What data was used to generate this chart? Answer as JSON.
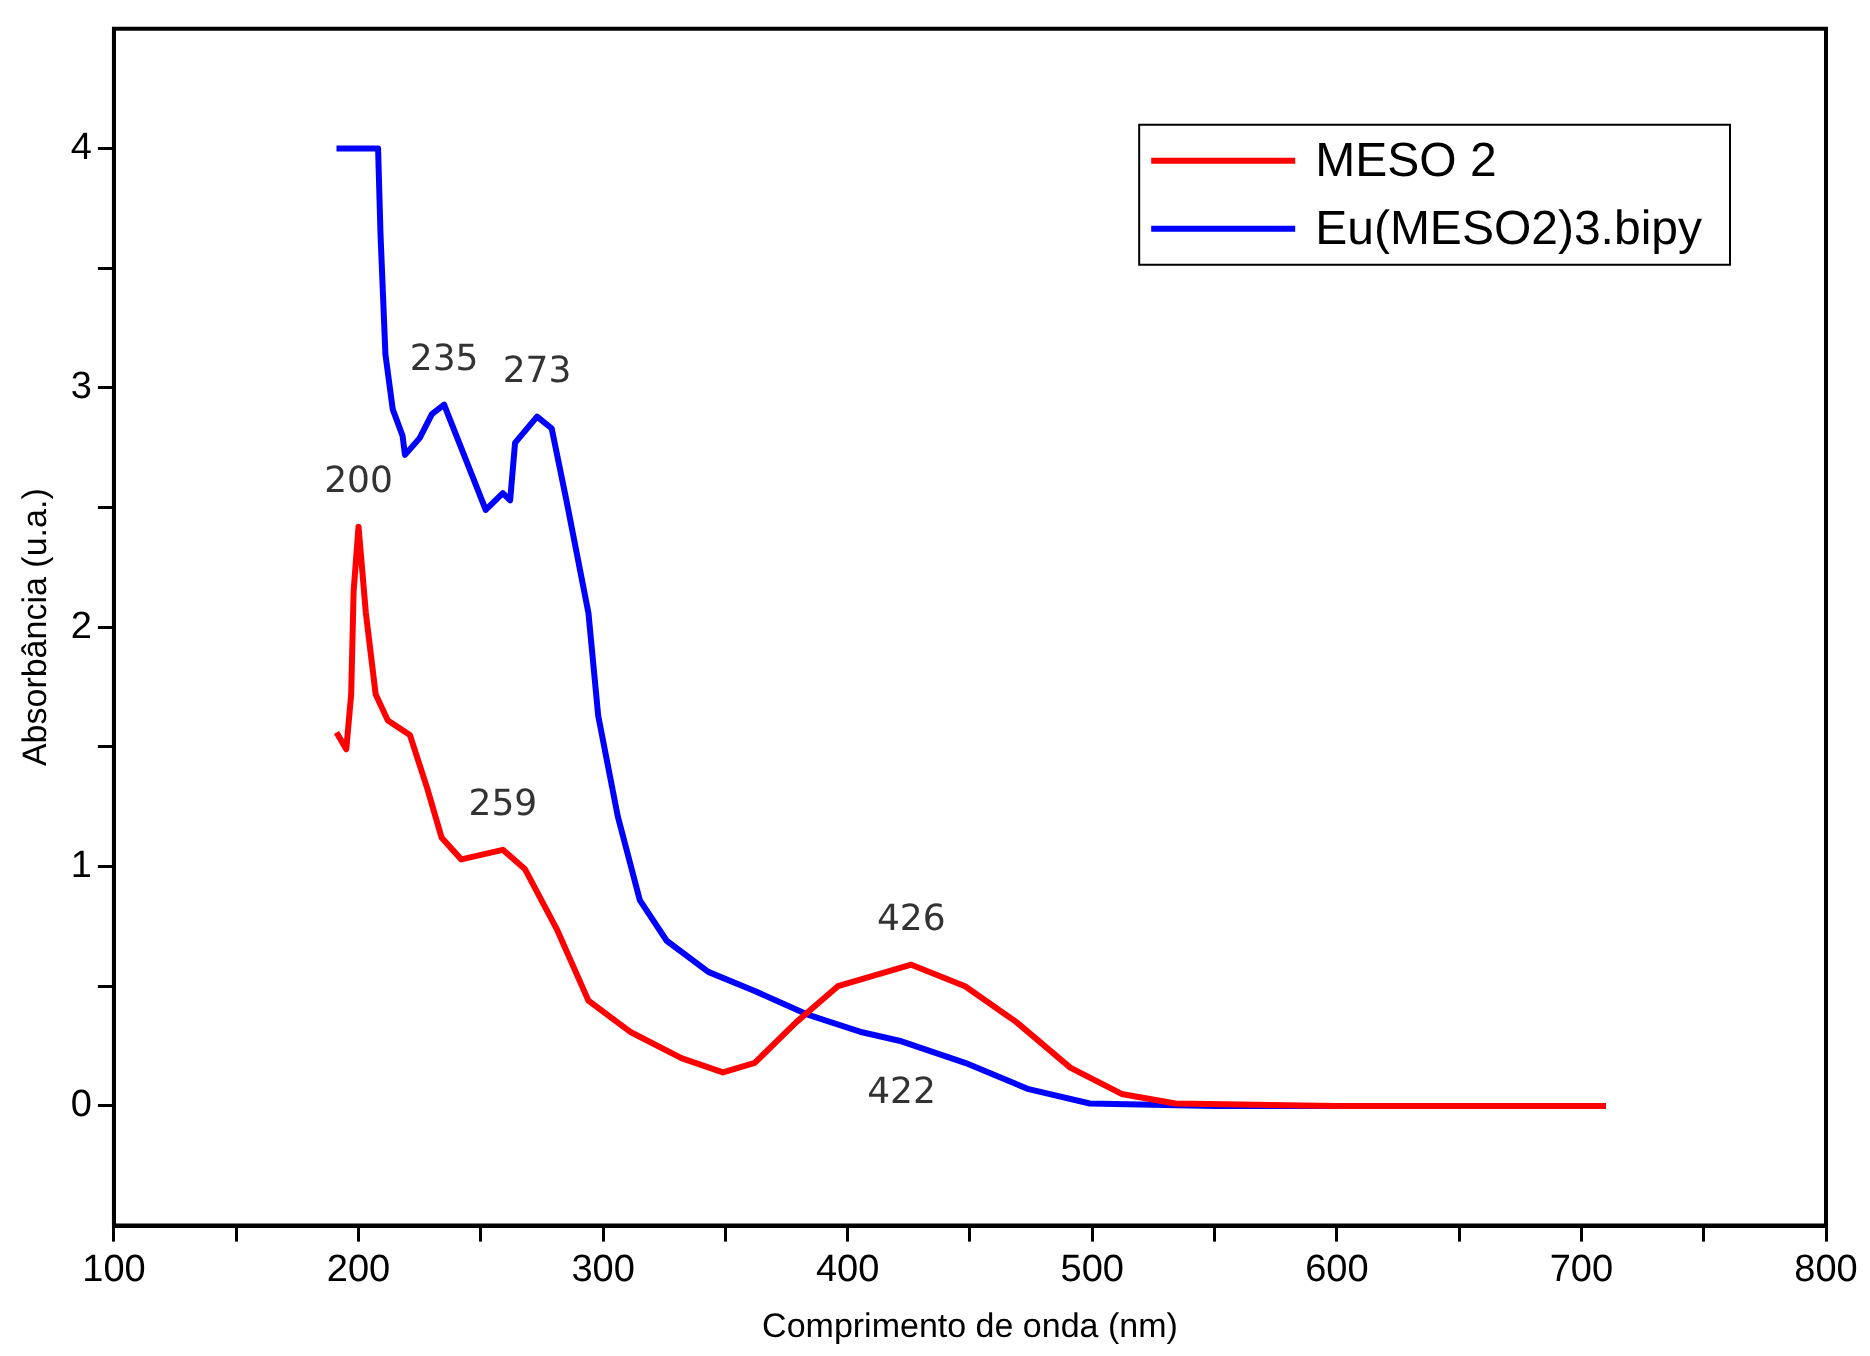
{
  "chart_data": {
    "type": "line",
    "xlabel": "Comprimento de onda (nm)",
    "ylabel": "Absorbância (u.a.)",
    "xlim": [
      100,
      800
    ],
    "ylim": [
      -0.5,
      4.5
    ],
    "xticks": [
      100,
      {
        "value": 150,
        "label": null
      },
      200,
      {
        "value": 250,
        "label": null
      },
      300,
      {
        "value": 350,
        "label": null
      },
      400,
      {
        "value": 450,
        "label": null
      },
      500,
      {
        "value": 550,
        "label": null
      },
      600,
      {
        "value": 650,
        "label": null
      },
      700,
      {
        "value": 750,
        "label": null
      },
      800
    ],
    "yticks": [
      0,
      {
        "value": 0.5,
        "label": null
      },
      1,
      {
        "value": 1.5,
        "label": null
      },
      2,
      {
        "value": 2.5,
        "label": null
      },
      3,
      {
        "value": 3.5,
        "label": null
      },
      4
    ],
    "grid": false,
    "legend": "top right",
    "marker": "none",
    "line_style": "solid",
    "series": [
      {
        "name": "MESO 2",
        "color": "#ff0000",
        "x": [
          191,
          195,
          197,
          198,
          200,
          203,
          207,
          212,
          221,
          228,
          234,
          242,
          259,
          268,
          281,
          294,
          311,
          332,
          349,
          362,
          379,
          396,
          426,
          448,
          469,
          491,
          512,
          534,
          600,
          650,
          710
        ],
        "values": [
          1.56,
          1.49,
          1.72,
          2.15,
          2.42,
          2.06,
          1.72,
          1.61,
          1.55,
          1.33,
          1.12,
          1.03,
          1.07,
          0.99,
          0.74,
          0.44,
          0.31,
          0.2,
          0.14,
          0.18,
          0.35,
          0.5,
          0.59,
          0.5,
          0.35,
          0.16,
          0.05,
          0.01,
          0,
          0,
          0
        ]
      },
      {
        "name": "Eu(MESO2)3.bipy",
        "color": "#0000ff",
        "x": [
          191,
          208,
          209,
          211,
          214,
          218,
          219,
          225,
          230,
          235,
          240,
          247,
          252,
          259,
          262,
          264,
          273,
          279,
          285,
          294,
          298,
          306,
          315,
          326,
          343,
          362,
          384,
          405,
          422,
          448,
          474,
          499,
          550,
          650,
          710
        ],
        "values": [
          4.0,
          4.0,
          3.64,
          3.14,
          2.91,
          2.8,
          2.72,
          2.79,
          2.89,
          2.93,
          2.8,
          2.62,
          2.49,
          2.56,
          2.53,
          2.77,
          2.88,
          2.83,
          2.53,
          2.06,
          1.63,
          1.21,
          0.86,
          0.69,
          0.56,
          0.48,
          0.38,
          0.31,
          0.27,
          0.18,
          0.07,
          0.01,
          0,
          0,
          0
        ]
      }
    ],
    "annotations": [
      {
        "text": "200",
        "x": 200,
        "y": 2.42
      },
      {
        "text": "235",
        "x": 235,
        "y": 2.93
      },
      {
        "text": "273",
        "x": 273,
        "y": 2.88
      },
      {
        "text": "259",
        "x": 259,
        "y": 1.07
      },
      {
        "text": "426",
        "x": 426,
        "y": 0.59
      },
      {
        "text": "422",
        "x": 422,
        "y": 0.27
      }
    ]
  }
}
